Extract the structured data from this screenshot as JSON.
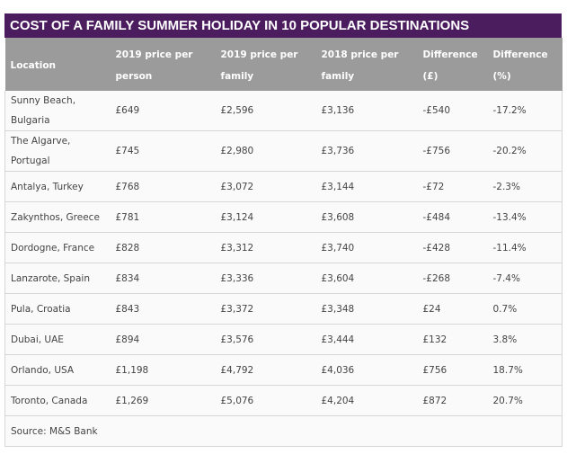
{
  "title": "COST OF A FAMILY SUMMER HOLIDAY IN 10 POPULAR DESTINATIONS",
  "table": {
    "headers": [
      "Location",
      "2019 price per person",
      "2019 price per family",
      "2018 price per family",
      "Difference (£)",
      "Difference (%)"
    ],
    "rows": [
      [
        "Sunny Beach, Bulgaria",
        "£649",
        "£2,596",
        "£3,136",
        "-£540",
        "-17.2%"
      ],
      [
        "The Algarve, Portugal",
        "£745",
        "£2,980",
        "£3,736",
        "-£756",
        "-20.2%"
      ],
      [
        "Antalya, Turkey",
        "£768",
        "£3,072",
        "£3,144",
        "-£72",
        "-2.3%"
      ],
      [
        "Zakynthos, Greece",
        "£781",
        "£3,124",
        "£3,608",
        "-£484",
        "-13.4%"
      ],
      [
        "Dordogne, France",
        "£828",
        "£3,312",
        "£3,740",
        "-£428",
        "-11.4%"
      ],
      [
        "Lanzarote, Spain",
        "£834",
        "£3,336",
        "£3,604",
        "-£268",
        "-7.4%"
      ],
      [
        "Pula, Croatia",
        "£843",
        "£3,372",
        "£3,348",
        "£24",
        "0.7%"
      ],
      [
        "Dubai, UAE",
        "£894",
        "£3,576",
        "£3,444",
        "£132",
        "3.8%"
      ],
      [
        "Orlando, USA",
        "£1,198",
        "£4,792",
        "£4,036",
        "£756",
        "18.7%"
      ],
      [
        "Toronto, Canada",
        "£1,269",
        "£5,076",
        "£4,204",
        "£872",
        "20.7%"
      ]
    ],
    "source": "Source: M&S Bank"
  }
}
